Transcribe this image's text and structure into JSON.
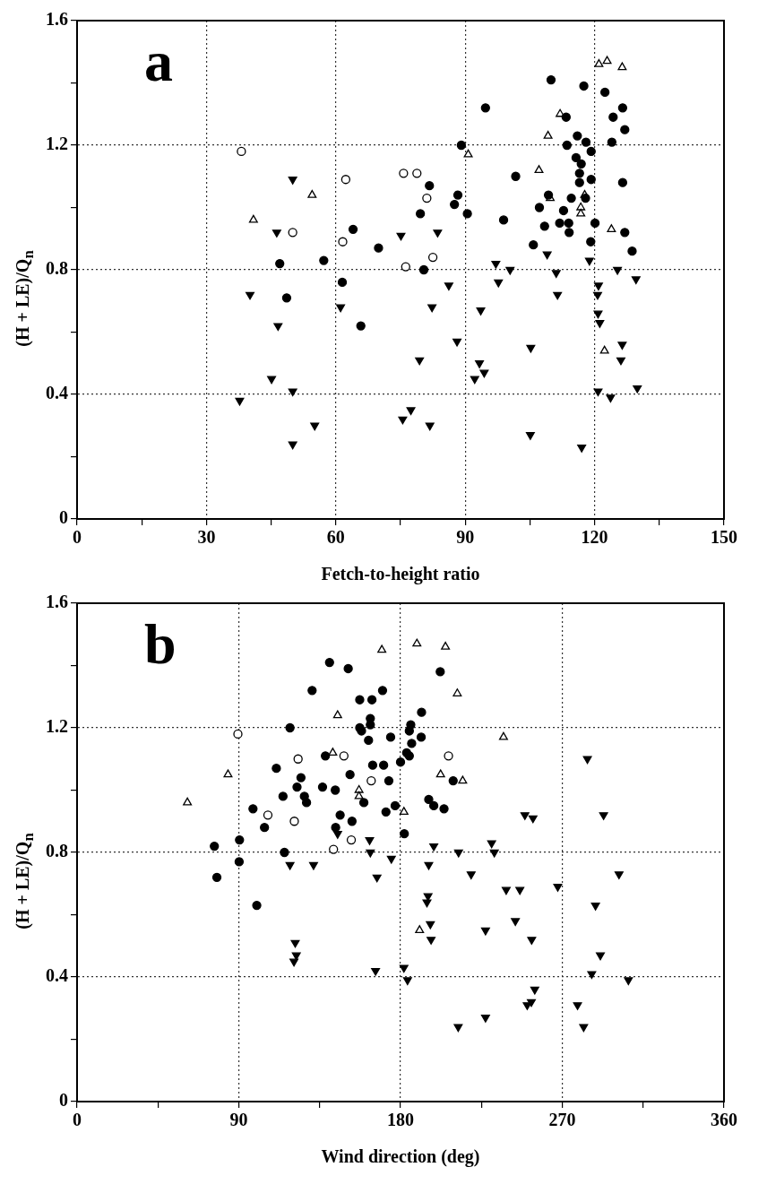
{
  "chart_data": [
    {
      "type": "scatter",
      "xlabel": "Fetch-to-height ratio",
      "ylabel": "(H + LE)/Q$_{n}$",
      "annotations": [
        "a"
      ],
      "xlim": [
        0,
        150
      ],
      "xticks": [
        0,
        {
          "value": 15,
          "label": null
        },
        30,
        {
          "value": 45,
          "label": null
        },
        60,
        {
          "value": 75,
          "label": null
        },
        90,
        {
          "value": 105,
          "label": null
        },
        120,
        {
          "value": 135,
          "label": null
        },
        150
      ],
      "ylim": [
        0,
        1.6
      ],
      "yticks": [
        0,
        {
          "value": 0.2,
          "label": null
        },
        0.4,
        {
          "value": 0.6,
          "label": null
        },
        0.8,
        {
          "value": 1.0,
          "label": null
        },
        1.2,
        {
          "value": 1.4,
          "label": null
        },
        1.6
      ],
      "grid": true,
      "legend": false,
      "series": [
        {
          "color": "#000000",
          "marker": "circle",
          "x": [
            64.0,
            69.9,
            57.2,
            47.0,
            61.5,
            48.6,
            65.8,
            109.9,
            117.5,
            122.4,
            94.7,
            126.5,
            124.3,
            127.0,
            113.4,
            116.0,
            124.0,
            89.1,
            113.6,
            118.0,
            119.2,
            115.7,
            116.9,
            116.5,
            116.5,
            119.2,
            101.7,
            126.5,
            81.7,
            88.3,
            87.5,
            79.6,
            90.5,
            98.9,
            109.3,
            107.2,
            114.6,
            112.8,
            111.9,
            114.0,
            108.4,
            114.1,
            120.1,
            117.9,
            119.1,
            127.0,
            105.8,
            128.7,
            80.4
          ],
          "values": [
            0.93,
            0.87,
            0.83,
            0.82,
            0.76,
            0.71,
            0.62,
            1.41,
            1.39,
            1.37,
            1.32,
            1.32,
            1.29,
            1.25,
            1.29,
            1.23,
            1.21,
            1.2,
            1.2,
            1.21,
            1.18,
            1.16,
            1.14,
            1.11,
            1.08,
            1.09,
            1.1,
            1.08,
            1.07,
            1.04,
            1.01,
            0.98,
            0.98,
            0.96,
            1.04,
            1.0,
            1.03,
            0.99,
            0.95,
            0.95,
            0.94,
            0.92,
            0.95,
            1.03,
            0.89,
            0.92,
            0.88,
            0.86,
            0.8
          ]
        },
        {
          "color": "#ffffff",
          "marker": "circle",
          "x": [
            38.1,
            62.3,
            50.0,
            61.6,
            75.7,
            78.8,
            81.1,
            82.5,
            76.2
          ],
          "values": [
            1.18,
            1.09,
            0.92,
            0.89,
            1.11,
            1.11,
            1.03,
            0.84,
            0.81
          ]
        },
        {
          "color": "#ffffff",
          "marker": "triangle",
          "x": [
            54.5,
            40.9,
            121.0,
            122.9,
            126.4,
            112.0,
            109.2,
            90.7,
            107.1,
            109.7,
            117.7,
            116.8,
            116.8,
            123.9,
            122.3
          ],
          "values": [
            1.04,
            0.96,
            1.46,
            1.47,
            1.45,
            1.3,
            1.23,
            1.17,
            1.12,
            1.03,
            1.04,
            1.0,
            0.98,
            0.93,
            0.54
          ]
        },
        {
          "color": "#000000",
          "marker": "triangle-down",
          "x": [
            50.0,
            46.3,
            40.1,
            46.6,
            45.1,
            50.0,
            37.7,
            55.1,
            50.0,
            61.1,
            75.1,
            83.6,
            109.0,
            118.8,
            97.1,
            100.4,
            111.1,
            125.3,
            129.6,
            86.2,
            97.7,
            120.9,
            111.4,
            120.7,
            82.3,
            93.6,
            120.8,
            121.2,
            88.1,
            105.2,
            126.4,
            126.1,
            79.4,
            93.3,
            94.4,
            92.2,
            120.8,
            123.7,
            129.9,
            77.4,
            75.5,
            81.8,
            105.1,
            117.0
          ],
          "values": [
            1.09,
            0.92,
            0.72,
            0.62,
            0.45,
            0.41,
            0.38,
            0.3,
            0.24,
            0.68,
            0.91,
            0.92,
            0.85,
            0.83,
            0.82,
            0.8,
            0.79,
            0.8,
            0.77,
            0.75,
            0.76,
            0.75,
            0.72,
            0.72,
            0.68,
            0.67,
            0.66,
            0.63,
            0.57,
            0.55,
            0.56,
            0.51,
            0.51,
            0.5,
            0.47,
            0.45,
            0.41,
            0.39,
            0.42,
            0.35,
            0.32,
            0.3,
            0.27,
            0.23
          ]
        }
      ]
    },
    {
      "type": "scatter",
      "xlabel": "Wind direction (deg)",
      "ylabel": "(H + LE)/Q$_{n}$",
      "annotations": [
        "b"
      ],
      "xlim": [
        0,
        360
      ],
      "xticks": [
        0,
        {
          "value": 45,
          "label": null
        },
        90,
        {
          "value": 135,
          "label": null
        },
        180,
        {
          "value": 225,
          "label": null
        },
        270,
        {
          "value": 315,
          "label": null
        },
        360
      ],
      "ylim": [
        0,
        1.6
      ],
      "yticks": [
        0,
        {
          "value": 0.2,
          "label": null
        },
        0.4,
        {
          "value": 0.6,
          "label": null
        },
        0.8,
        {
          "value": 1.0,
          "label": null
        },
        1.2,
        {
          "value": 1.4,
          "label": null
        },
        1.6
      ],
      "grid": true,
      "legend": false,
      "series": [
        {
          "color": "#000000",
          "marker": "circle",
          "x": [
            140.5,
            150.9,
            130.8,
            170.0,
            157.3,
            164.1,
            163.2,
            163.2,
            157.3,
            158.3,
            162.2,
            118.5,
            138.2,
            110.9,
            124.6,
            122.4,
            151.9,
            164.5,
            170.6,
            173.5,
            136.6,
            143.7,
            114.6,
            126.5,
            127.7,
            159.6,
            97.9,
            146.4,
            171.9,
            104.3,
            153.0,
            143.9,
            90.4,
            76.4,
            115.4,
            90.2,
            77.8,
            100.0,
            202.1,
            191.7,
            185.7,
            184.9,
            174.5,
            191.5,
            186.2,
            183.4,
            184.9,
            180.0,
            209.3,
            195.7,
            198.5,
            204.2,
            177.0,
            182.1
          ],
          "values": [
            1.41,
            1.39,
            1.32,
            1.32,
            1.29,
            1.29,
            1.23,
            1.21,
            1.2,
            1.19,
            1.16,
            1.2,
            1.11,
            1.07,
            1.04,
            1.01,
            1.05,
            1.08,
            1.08,
            1.03,
            1.01,
            1.0,
            0.98,
            0.98,
            0.96,
            0.96,
            0.94,
            0.92,
            0.93,
            0.88,
            0.9,
            0.88,
            0.84,
            0.82,
            0.8,
            0.77,
            0.72,
            0.63,
            1.38,
            1.25,
            1.21,
            1.19,
            1.17,
            1.17,
            1.15,
            1.12,
            1.11,
            1.09,
            1.03,
            0.97,
            0.95,
            0.94,
            0.95,
            0.86
          ]
        },
        {
          "color": "#ffffff",
          "marker": "circle",
          "x": [
            89.5,
            123.0,
            148.5,
            163.7,
            106.2,
            120.9,
            152.6,
            142.7,
            206.7
          ],
          "values": [
            1.18,
            1.1,
            1.11,
            1.03,
            0.92,
            0.9,
            0.84,
            0.81,
            1.11
          ]
        },
        {
          "color": "#ffffff",
          "marker": "triangle",
          "x": [
            169.6,
            145.0,
            142.3,
            84.0,
            61.4,
            156.9,
            156.9,
            189.1,
            205.0,
            211.6,
            237.3,
            202.3,
            214.6,
            181.9,
            190.6
          ],
          "values": [
            1.45,
            1.24,
            1.12,
            1.05,
            0.96,
            1.0,
            0.98,
            1.47,
            1.46,
            1.31,
            1.17,
            1.05,
            1.03,
            0.93,
            0.55
          ]
        },
        {
          "color": "#000000",
          "marker": "triangle-down",
          "x": [
            145.0,
            162.8,
            163.2,
            118.5,
            131.6,
            166.9,
            121.4,
            122.0,
            120.7,
            166.1,
            284.0,
            249.2,
            253.7,
            293.0,
            198.5,
            212.3,
            230.7,
            232.2,
            174.9,
            195.7,
            219.3,
            301.6,
            238.8,
            246.4,
            267.5,
            195.3,
            194.7,
            288.5,
            243.9,
            227.3,
            196.6,
            197.0,
            253.0,
            291.2,
            181.9,
            183.9,
            286.4,
            306.8,
            254.7,
            252.8,
            250.5,
            278.5,
            281.9,
            227.3,
            212.1
          ],
          "values": [
            0.86,
            0.84,
            0.8,
            0.76,
            0.76,
            0.72,
            0.51,
            0.47,
            0.45,
            0.42,
            1.1,
            0.92,
            0.91,
            0.92,
            0.82,
            0.8,
            0.83,
            0.8,
            0.78,
            0.76,
            0.73,
            0.73,
            0.68,
            0.68,
            0.69,
            0.66,
            0.64,
            0.63,
            0.58,
            0.55,
            0.57,
            0.52,
            0.52,
            0.47,
            0.43,
            0.39,
            0.41,
            0.39,
            0.36,
            0.32,
            0.31,
            0.31,
            0.24,
            0.27,
            0.24
          ]
        }
      ]
    }
  ]
}
